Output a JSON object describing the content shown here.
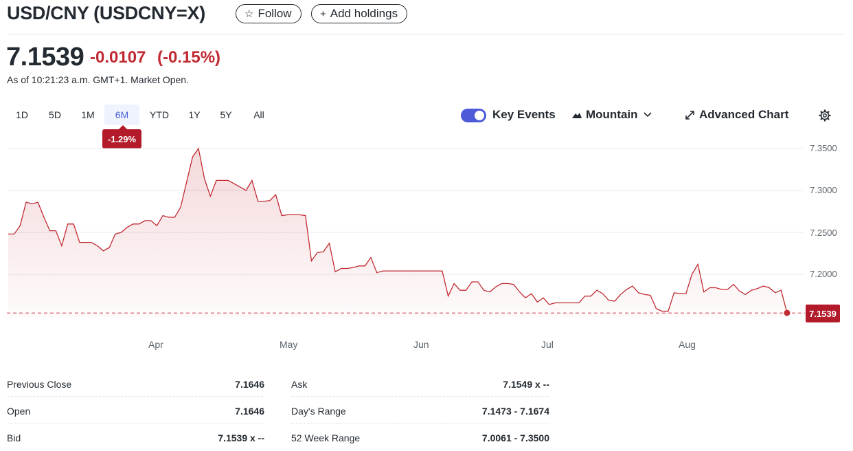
{
  "header": {
    "title": "USD/CNY (USDCNY=X)",
    "follow_label": "Follow",
    "add_holdings_label": "Add holdings"
  },
  "quote": {
    "price": "7.1539",
    "change": "-0.0107",
    "change_pct": "(-0.15%)",
    "as_of": "As of 10:21:23 a.m. GMT+1. Market Open."
  },
  "ranges": [
    "1D",
    "5D",
    "1M",
    "6M",
    "YTD",
    "1Y",
    "5Y",
    "All"
  ],
  "selected_range": "6M",
  "range_change_badge": "-1.29%",
  "toolbar": {
    "key_events_label": "Key Events",
    "key_events_on": true,
    "chart_type_label": "Mountain",
    "advanced_chart_label": "Advanced Chart"
  },
  "colors": {
    "accent": "#4d5bd8",
    "negative": "#c12a32",
    "badge": "#b31b2a"
  },
  "chart_data": {
    "type": "area",
    "yticks": [
      "7.3500",
      "7.3000",
      "7.2500",
      "7.2000"
    ],
    "ylim": [
      7.15,
      7.35
    ],
    "xticks": [
      "Apr",
      "May",
      "Jun",
      "Jul",
      "Aug"
    ],
    "last_value_label": "7.1539",
    "reference_value": 7.1539,
    "values": [
      7.248,
      7.248,
      7.258,
      7.286,
      7.284,
      7.286,
      7.268,
      7.252,
      7.252,
      7.234,
      7.26,
      7.26,
      7.238,
      7.238,
      7.238,
      7.234,
      7.228,
      7.232,
      7.248,
      7.25,
      7.256,
      7.26,
      7.26,
      7.264,
      7.264,
      7.258,
      7.27,
      7.268,
      7.268,
      7.28,
      7.31,
      7.34,
      7.35,
      7.314,
      7.293,
      7.312,
      7.312,
      7.312,
      7.308,
      7.304,
      7.3,
      7.312,
      7.287,
      7.287,
      7.288,
      7.295,
      7.27,
      7.271,
      7.271,
      7.271,
      7.27,
      7.216,
      7.226,
      7.227,
      7.237,
      7.203,
      7.207,
      7.207,
      7.208,
      7.21,
      7.21,
      7.22,
      7.202,
      7.204,
      7.204,
      7.204,
      7.204,
      7.204,
      7.204,
      7.204,
      7.204,
      7.204,
      7.204,
      7.204,
      7.174,
      7.189,
      7.181,
      7.181,
      7.191,
      7.191,
      7.181,
      7.179,
      7.185,
      7.189,
      7.189,
      7.188,
      7.179,
      7.172,
      7.177,
      7.167,
      7.172,
      7.164,
      7.166,
      7.166,
      7.166,
      7.166,
      7.166,
      7.174,
      7.174,
      7.181,
      7.177,
      7.169,
      7.168,
      7.176,
      7.182,
      7.186,
      7.178,
      7.176,
      7.175,
      7.159,
      7.156,
      7.156,
      7.178,
      7.177,
      7.177,
      7.2,
      7.212,
      7.179,
      7.184,
      7.184,
      7.182,
      7.182,
      7.188,
      7.18,
      7.176,
      7.181,
      7.183,
      7.186,
      7.184,
      7.178,
      7.181,
      7.154
    ]
  },
  "stats_left": [
    {
      "label": "Previous Close",
      "value": "7.1646"
    },
    {
      "label": "Open",
      "value": "7.1646"
    },
    {
      "label": "Bid",
      "value": "7.1539 x --"
    }
  ],
  "stats_right": [
    {
      "label": "Ask",
      "value": "7.1549 x --"
    },
    {
      "label": "Day's Range",
      "value": "7.1473 - 7.1674"
    },
    {
      "label": "52 Week Range",
      "value": "7.0061 - 7.3500"
    }
  ]
}
